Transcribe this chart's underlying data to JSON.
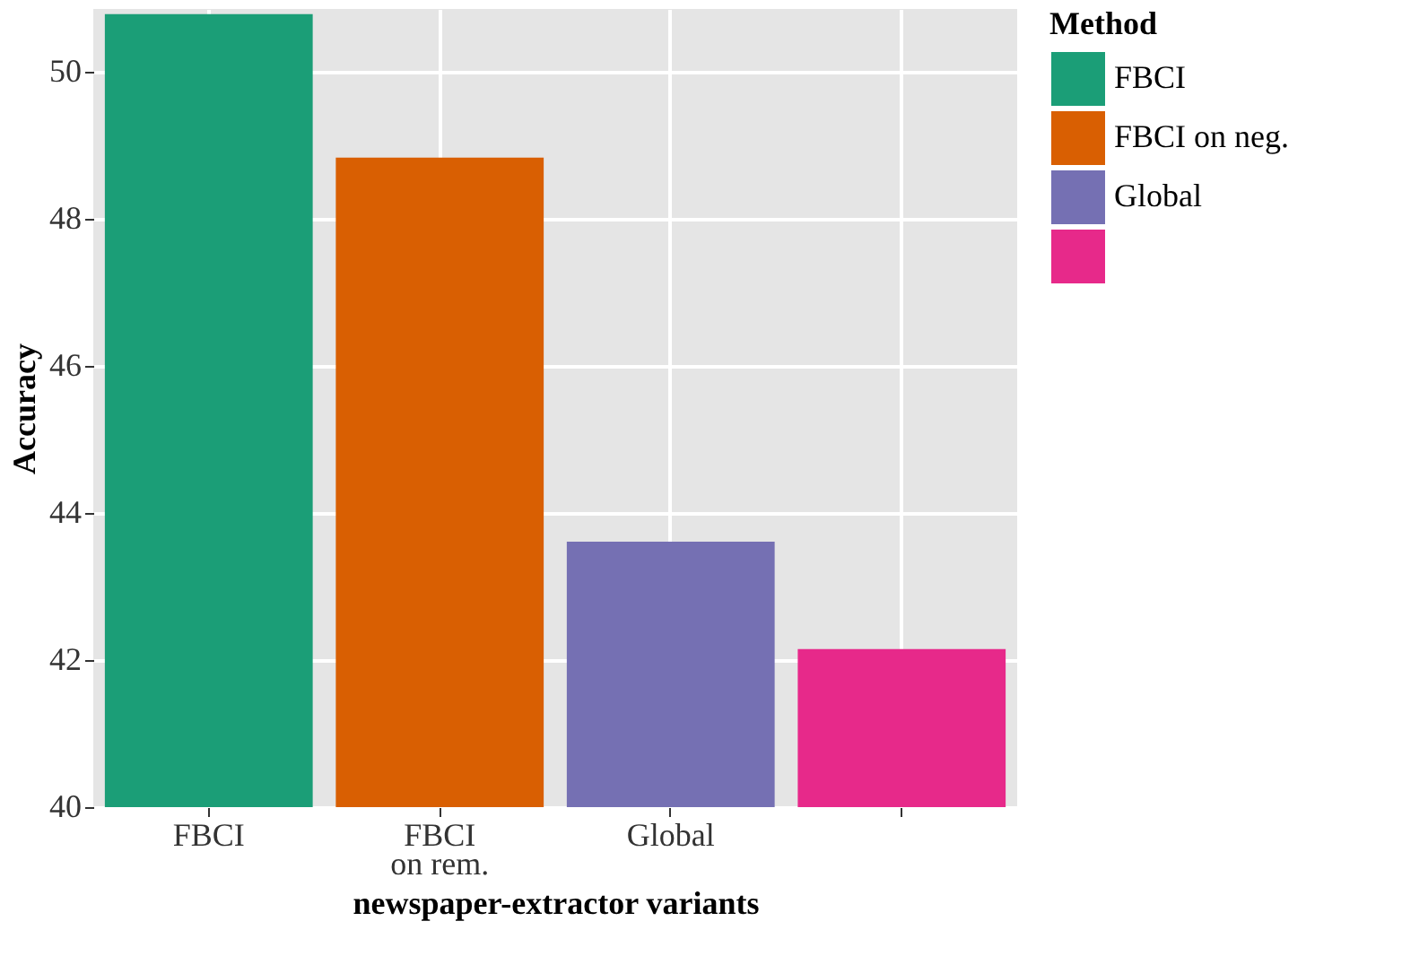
{
  "chart_data": {
    "type": "bar",
    "xlabel": "newspaper-extractor variants",
    "ylabel": "Accuracy",
    "legend_title": "Method",
    "categories": [
      "FBCI",
      "FBCI on rem.",
      "Global",
      null
    ],
    "series": [
      {
        "name": "FBCI",
        "color": "#1b9e77",
        "values": [
          50.78,
          null,
          null,
          null
        ]
      },
      {
        "name": "FBCI on neg.",
        "color": "#d95f02",
        "values": [
          null,
          48.83,
          null,
          null
        ]
      },
      {
        "name": "Global",
        "color": "#7570b3",
        "values": [
          null,
          null,
          43.61,
          null
        ]
      },
      {
        "color": "#e7298a",
        "values": [
          null,
          null,
          null,
          42.15
        ]
      }
    ],
    "ylim": [
      40,
      50.85
    ],
    "yticks": [
      40,
      42,
      44,
      46,
      48,
      50
    ],
    "grid": true,
    "legend": "right"
  }
}
